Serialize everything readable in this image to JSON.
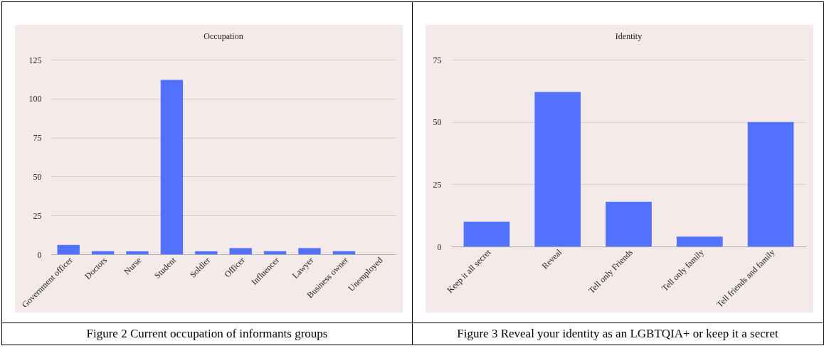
{
  "chart_data": [
    {
      "type": "bar",
      "title": "Occupation",
      "categories": [
        "Government officer",
        "Doctors",
        "Nurse",
        "Student",
        "Soldier",
        "Officer",
        "Influencer",
        "Lawyer",
        "Business owner",
        "Unemployed"
      ],
      "values": [
        6,
        2,
        2,
        112,
        2,
        4,
        2,
        4,
        2,
        0
      ],
      "color": "#5271ff",
      "ylim": [
        0,
        125
      ],
      "yticks": [
        0,
        25,
        50,
        75,
        100,
        125
      ],
      "grid": "y",
      "annotations": [
        "Figure 2 Current occupation of informants groups"
      ]
    },
    {
      "type": "bar",
      "title": "Identity",
      "categories": [
        "Keep it all secret",
        "Reveal",
        "Tell only Friends",
        "Tell only family",
        "Tell friends and family"
      ],
      "values": [
        10,
        62,
        18,
        4,
        50
      ],
      "color": "#5271ff",
      "ylim": [
        0,
        75
      ],
      "yticks": [
        0,
        25,
        50,
        75
      ],
      "grid": "y",
      "annotations": [
        "Figure 3 Reveal your identity as an LGBTQIA+ or keep it a secret"
      ]
    }
  ]
}
